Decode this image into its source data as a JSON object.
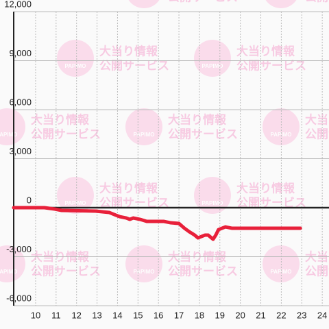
{
  "chart_data": {
    "type": "line",
    "watermark": {
      "logo": "PAPIMO",
      "line1": "大当り情報",
      "line2": "公開サービス"
    },
    "x": [
      8.93,
      10.43,
      10.93,
      11.27,
      12.93,
      13.6,
      13.93,
      14.1,
      14.43,
      14.6,
      14.77,
      15.1,
      15.43,
      16.27,
      16.6,
      17.0,
      17.27,
      17.5,
      17.77,
      17.93,
      18.27,
      18.43,
      18.67,
      18.8,
      18.93,
      19.27,
      19.6,
      22.93
    ],
    "series": [
      {
        "color": "#e8203a",
        "values": [
          0,
          0,
          -84,
          -168,
          -210,
          -294,
          -462,
          -546,
          -630,
          -714,
          -630,
          -714,
          -840,
          -840,
          -924,
          -966,
          -1260,
          -1470,
          -1680,
          -1848,
          -1680,
          -1680,
          -1932,
          -1680,
          -1344,
          -1176,
          -1260,
          -1260
        ]
      }
    ],
    "xlim": [
      8.93,
      24.33
    ],
    "xticks": [
      10,
      11,
      12,
      13,
      14,
      15,
      16,
      17,
      18,
      19,
      20,
      21,
      22,
      23,
      24
    ],
    "ylim": [
      -6000,
      12000
    ],
    "yticks": [
      {
        "value": -6000,
        "label": "-6,000"
      },
      {
        "value": -3000,
        "label": "-3,000"
      },
      {
        "value": 0,
        "label": "0"
      },
      {
        "value": 3000,
        "label": "3,000"
      },
      {
        "value": 6000,
        "label": "6,000"
      },
      {
        "value": 9000,
        "label": "9,000"
      },
      {
        "value": 12000,
        "label": "12,000"
      }
    ],
    "grid": true
  }
}
